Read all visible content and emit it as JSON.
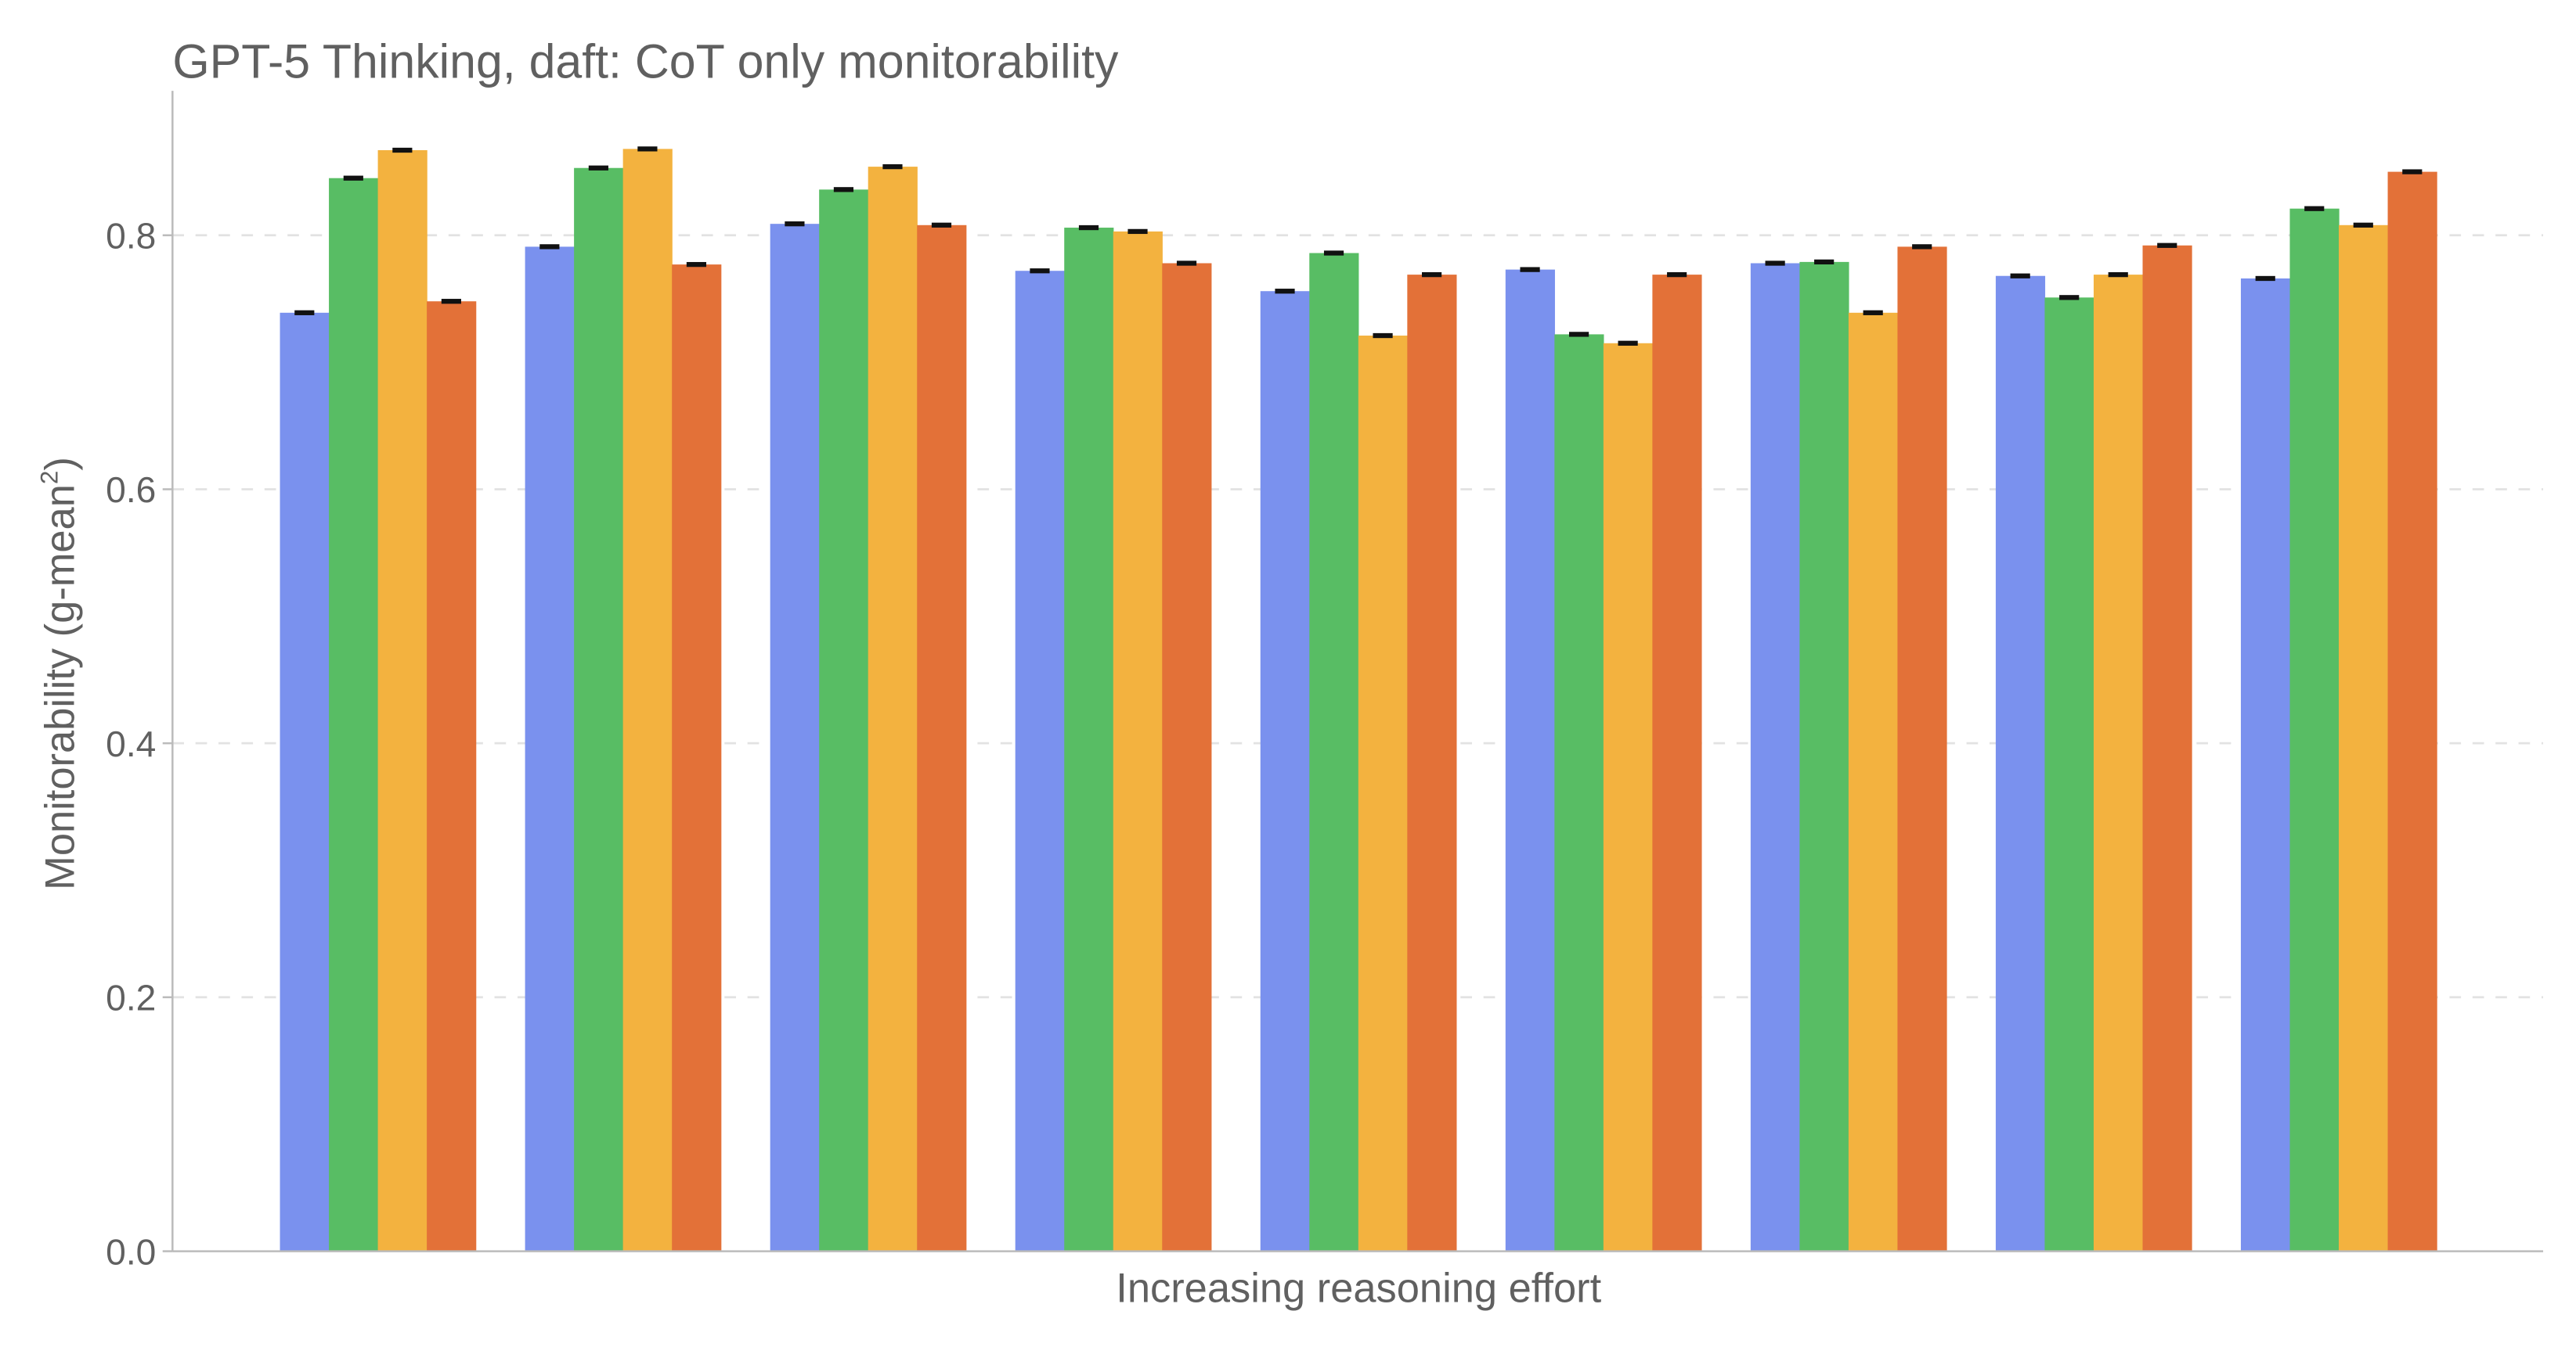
{
  "chart_data": {
    "type": "bar",
    "title": "GPT-5 Thinking, daft: CoT only monitorability",
    "xlabel": "Increasing reasoning effort",
    "ylabel": "Monitorability (g-mean",
    "ylabel_sup": "2",
    "ylabel_close": ")",
    "ylim": [
      0,
      0.91
    ],
    "yticks": [
      "0.0",
      "0.2",
      "0.4",
      "0.6",
      "0.8"
    ],
    "ytick_values": [
      0,
      0.2,
      0.4,
      0.6,
      0.8
    ],
    "grid": true,
    "groups": 9,
    "colors": [
      "#7a91ee",
      "#58bd64",
      "#f3b23f",
      "#e37138"
    ],
    "series": [
      {
        "name": "series-1",
        "values": [
          0.739,
          0.791,
          0.809,
          0.772,
          0.756,
          0.773,
          0.778,
          0.768,
          0.766
        ]
      },
      {
        "name": "series-2",
        "values": [
          0.845,
          0.853,
          0.836,
          0.806,
          0.786,
          0.722,
          0.779,
          0.751,
          0.821
        ]
      },
      {
        "name": "series-3",
        "values": [
          0.867,
          0.868,
          0.854,
          0.803,
          0.721,
          0.715,
          0.739,
          0.769,
          0.808
        ]
      },
      {
        "name": "series-4",
        "values": [
          0.748,
          0.777,
          0.808,
          0.778,
          0.769,
          0.769,
          0.791,
          0.792,
          0.85
        ]
      }
    ]
  }
}
